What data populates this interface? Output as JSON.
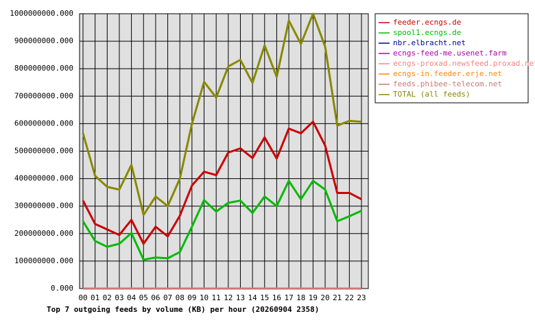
{
  "chart_data": {
    "type": "line",
    "title": "Top 7 outgoing feeds by volume (KB) per hour (20260904 2358)",
    "categories": [
      "00",
      "01",
      "02",
      "03",
      "04",
      "05",
      "06",
      "07",
      "08",
      "09",
      "10",
      "11",
      "12",
      "13",
      "14",
      "15",
      "16",
      "17",
      "18",
      "19",
      "20",
      "21",
      "22",
      "23"
    ],
    "ylim": [
      0,
      1000000000
    ],
    "yticks": [
      {
        "value": 0,
        "label": "0.000"
      },
      {
        "value": 100000000,
        "label": "100000000.000"
      },
      {
        "value": 200000000,
        "label": "200000000.000"
      },
      {
        "value": 300000000,
        "label": "300000000.000"
      },
      {
        "value": 400000000,
        "label": "400000000.000"
      },
      {
        "value": 500000000,
        "label": "500000000.000"
      },
      {
        "value": 600000000,
        "label": "600000000.000"
      },
      {
        "value": 700000000,
        "label": "700000000.000"
      },
      {
        "value": 800000000,
        "label": "800000000.000"
      },
      {
        "value": 900000000,
        "label": "900000000.000"
      },
      {
        "value": 1000000000,
        "label": "1000000000.000"
      }
    ],
    "grid": true,
    "legend": "right",
    "series": [
      {
        "name": "feeder.ecngs.de",
        "color": "#cc0000",
        "values": [
          320000000,
          235000000,
          215000000,
          195000000,
          250000000,
          163000000,
          225000000,
          190000000,
          265000000,
          375000000,
          425000000,
          413000000,
          495000000,
          510000000,
          475000000,
          550000000,
          473000000,
          582000000,
          565000000,
          607000000,
          520000000,
          348000000,
          348000000,
          325000000
        ]
      },
      {
        "name": "spool1.ecngs.de",
        "color": "#00bb00",
        "values": [
          245000000,
          173000000,
          152000000,
          163000000,
          202000000,
          105000000,
          113000000,
          110000000,
          133000000,
          225000000,
          322000000,
          280000000,
          312000000,
          320000000,
          275000000,
          335000000,
          300000000,
          392000000,
          325000000,
          392000000,
          360000000,
          245000000,
          263000000,
          283000000
        ]
      },
      {
        "name": "nbr.elbracht.net",
        "color": "#000099",
        "values": [
          0,
          0,
          0,
          0,
          0,
          0,
          0,
          0,
          0,
          0,
          0,
          0,
          0,
          0,
          0,
          0,
          0,
          0,
          0,
          0,
          0,
          0,
          0,
          0
        ]
      },
      {
        "name": "ecngs-feed-me.usenet.farm",
        "color": "#aa00aa",
        "values": [
          0,
          0,
          0,
          0,
          0,
          0,
          0,
          0,
          0,
          0,
          0,
          0,
          0,
          0,
          0,
          0,
          0,
          0,
          0,
          0,
          0,
          0,
          0,
          0
        ]
      },
      {
        "name": "ecngs-proxad.newsfeed.proxad.net",
        "color": "#ff8080",
        "values": [
          0,
          0,
          0,
          0,
          0,
          0,
          0,
          0,
          0,
          0,
          0,
          0,
          0,
          0,
          0,
          0,
          0,
          0,
          0,
          0,
          0,
          0,
          0,
          0
        ]
      },
      {
        "name": "ecngs-in.feeder.erje.net",
        "color": "#ff8800",
        "values": [
          0,
          0,
          0,
          0,
          0,
          0,
          0,
          0,
          0,
          0,
          0,
          0,
          0,
          0,
          0,
          0,
          0,
          0,
          0,
          0,
          0,
          0,
          0,
          0
        ]
      },
      {
        "name": "feeds.phibee-telecom.net",
        "color": "#cc7777",
        "values": [
          0,
          0,
          0,
          0,
          0,
          0,
          0,
          0,
          0,
          0,
          0,
          0,
          0,
          0,
          0,
          0,
          0,
          0,
          0,
          0,
          0,
          0,
          0,
          0
        ]
      },
      {
        "name": "TOTAL (all feeds)",
        "color": "#888800",
        "values": [
          565000000,
          410000000,
          370000000,
          360000000,
          450000000,
          268000000,
          335000000,
          300000000,
          400000000,
          600000000,
          752000000,
          695000000,
          808000000,
          832000000,
          748000000,
          885000000,
          770000000,
          975000000,
          890000000,
          1000000000,
          880000000,
          593000000,
          610000000,
          607000000
        ]
      }
    ]
  }
}
